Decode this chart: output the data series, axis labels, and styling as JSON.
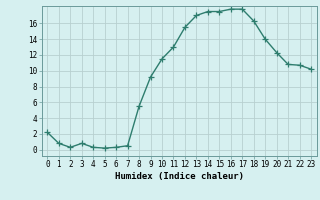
{
  "x": [
    0,
    1,
    2,
    3,
    4,
    5,
    6,
    7,
    8,
    9,
    10,
    11,
    12,
    13,
    14,
    15,
    16,
    17,
    18,
    19,
    20,
    21,
    22,
    23
  ],
  "y": [
    2.2,
    0.8,
    0.3,
    0.8,
    0.3,
    0.2,
    0.3,
    0.5,
    5.5,
    9.2,
    11.5,
    13.0,
    15.5,
    17.0,
    17.5,
    17.5,
    17.8,
    17.8,
    16.3,
    14.0,
    12.3,
    10.8,
    10.7,
    10.2
  ],
  "line_color": "#2e7d6e",
  "marker": "+",
  "markersize": 4,
  "linewidth": 1.0,
  "bg_color": "#d6f0f0",
  "grid_color": "#b8d0d0",
  "xlabel": "Humidex (Indice chaleur)",
  "xlabel_fontsize": 6.5,
  "ylabel_ticks": [
    0,
    2,
    4,
    6,
    8,
    10,
    12,
    14,
    16
  ],
  "xlim": [
    -0.5,
    23.5
  ],
  "ylim": [
    -0.8,
    18.2
  ],
  "tick_fontsize": 5.5
}
